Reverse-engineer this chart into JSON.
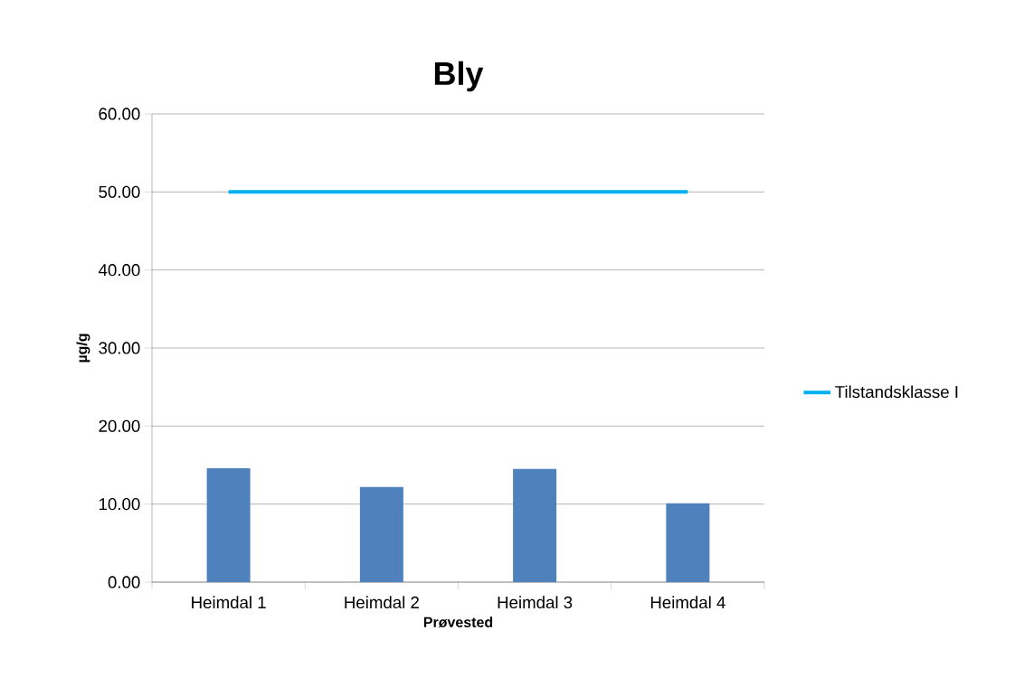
{
  "chart_data": {
    "type": "bar",
    "title": "Bly",
    "xlabel": "Prøvested",
    "ylabel": "µg/g",
    "categories": [
      "Heimdal 1",
      "Heimdal 2",
      "Heimdal 3",
      "Heimdal 4"
    ],
    "series": [
      {
        "color": "#4f81bd",
        "values": [
          14.6,
          12.2,
          14.5,
          10.1
        ]
      },
      {
        "type": "line",
        "name": "Tilstandsklasse I",
        "color": "#00b0f0",
        "values": [
          50,
          50,
          50,
          50
        ]
      }
    ],
    "ylim": [
      0,
      60
    ],
    "yticks": [
      {
        "value": 0,
        "label": "0.00"
      },
      {
        "value": 10,
        "label": "10.00"
      },
      {
        "value": 20,
        "label": "20.00"
      },
      {
        "value": 30,
        "label": "30.00"
      },
      {
        "value": 40,
        "label": "40.00"
      },
      {
        "value": 50,
        "label": "50.00"
      },
      {
        "value": 60,
        "label": "60.00"
      }
    ],
    "grid": "y",
    "legend": "right",
    "marker": "none"
  }
}
